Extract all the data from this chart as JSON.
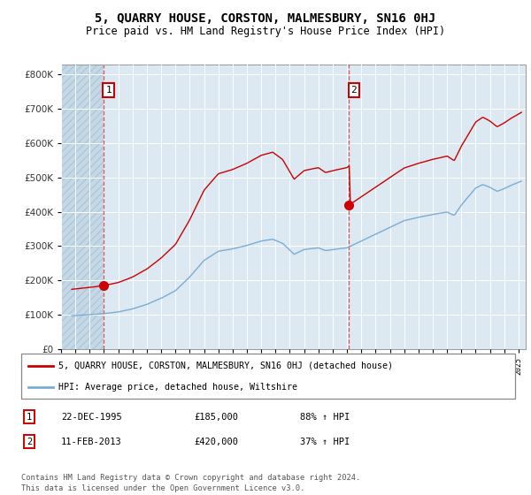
{
  "title": "5, QUARRY HOUSE, CORSTON, MALMESBURY, SN16 0HJ",
  "subtitle": "Price paid vs. HM Land Registry's House Price Index (HPI)",
  "red_label": "5, QUARRY HOUSE, CORSTON, MALMESBURY, SN16 0HJ (detached house)",
  "blue_label": "HPI: Average price, detached house, Wiltshire",
  "footnote": "Contains HM Land Registry data © Crown copyright and database right 2024.\nThis data is licensed under the Open Government Licence v3.0.",
  "annotation1": {
    "num": "1",
    "date": "22-DEC-1995",
    "price": "£185,000",
    "pct": "88% ↑ HPI"
  },
  "annotation2": {
    "num": "2",
    "date": "11-FEB-2013",
    "price": "£420,000",
    "pct": "37% ↑ HPI"
  },
  "sale1_year": 1995.97,
  "sale1_price": 185000,
  "sale2_year": 2013.12,
  "sale2_price": 420000,
  "red_color": "#cc0000",
  "blue_color": "#7aadd4",
  "dashed_color": "#dd4444",
  "background_color": "#dce8f2",
  "grid_color": "#ffffff",
  "ylim": [
    0,
    830000
  ],
  "xlim_start": 1993.0,
  "xlim_end": 2025.5,
  "title_fontsize": 10,
  "subtitle_fontsize": 8.5
}
